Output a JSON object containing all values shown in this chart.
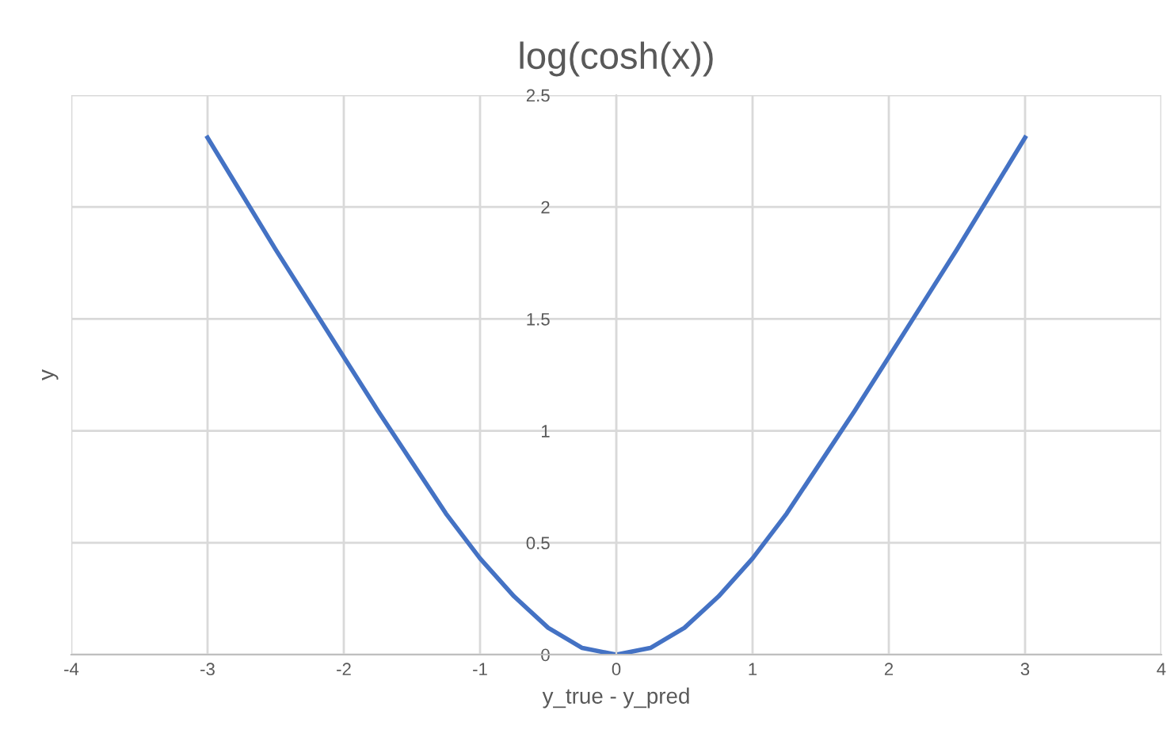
{
  "chart_data": {
    "type": "line",
    "title": "log(cosh(x))",
    "xlabel": "y_true - y_pred",
    "ylabel": "y",
    "x": [
      -3,
      -2.75,
      -2.5,
      -2.25,
      -2,
      -1.75,
      -1.5,
      -1.25,
      -1,
      -0.75,
      -0.5,
      -0.25,
      0,
      0.25,
      0.5,
      0.75,
      1,
      1.25,
      1.5,
      1.75,
      2,
      2.25,
      2.5,
      2.75,
      3
    ],
    "series": [
      {
        "color": "#4472c4",
        "values": [
          2.31,
          2.06,
          1.81,
          1.57,
          1.33,
          1.09,
          0.86,
          0.63,
          0.43,
          0.26,
          0.12,
          0.03,
          0,
          0.03,
          0.12,
          0.26,
          0.43,
          0.63,
          0.86,
          1.09,
          1.33,
          1.57,
          1.81,
          2.06,
          2.31
        ]
      }
    ],
    "xlim": [
      -4,
      4
    ],
    "ylim": [
      0,
      2.5
    ],
    "xticks": [
      -4,
      -3,
      -2,
      -1,
      0,
      1,
      2,
      3,
      4
    ],
    "yticks": [
      0,
      0.5,
      1,
      1.5,
      2,
      2.5
    ],
    "grid": true,
    "marker": "none",
    "line_style": "solid"
  }
}
